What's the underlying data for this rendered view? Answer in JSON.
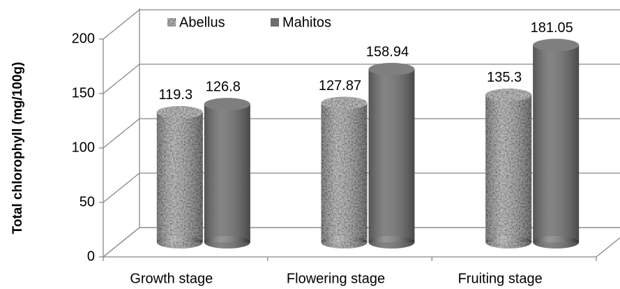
{
  "chart_data": {
    "type": "bar",
    "ylabel": "Total chlorophyll (mg/100g)",
    "categories": [
      "Growth stage",
      "Flowering stage",
      "Fruiting stage"
    ],
    "series": [
      {
        "name": "Abellus",
        "color": "#b4b4b4",
        "values": [
          119.3,
          127.87,
          135.3
        ]
      },
      {
        "name": "Mahitos",
        "color": "#6e6e6e",
        "values": [
          126.8,
          158.94,
          181.05
        ]
      }
    ],
    "ylim": [
      0,
      200
    ],
    "yticks": [
      0,
      50,
      100,
      150,
      200
    ],
    "grid": true,
    "legend": "top"
  }
}
